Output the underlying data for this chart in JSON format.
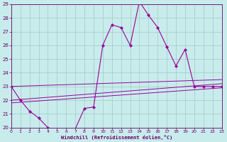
{
  "xlabel": "Windchill (Refroidissement éolien,°C)",
  "bg_color": "#c8ecec",
  "grid_color": "#a0c8c8",
  "line_color": "#990099",
  "xlim": [
    0,
    23
  ],
  "ylim": [
    20,
    29
  ],
  "yticks": [
    20,
    21,
    22,
    23,
    24,
    25,
    26,
    27,
    28,
    29
  ],
  "xticks": [
    0,
    1,
    2,
    3,
    4,
    5,
    6,
    7,
    8,
    9,
    10,
    11,
    12,
    13,
    14,
    15,
    16,
    17,
    18,
    19,
    20,
    21,
    22,
    23
  ],
  "series": [
    {
      "x": [
        0,
        1,
        2,
        3,
        4,
        5,
        6,
        7,
        8,
        9,
        10,
        11,
        12,
        13,
        14,
        15,
        16,
        17,
        18,
        19,
        20,
        21,
        22,
        23
      ],
      "y": [
        23.0,
        22.0,
        21.2,
        20.7,
        20.0,
        19.8,
        19.8,
        19.9,
        21.4,
        21.5,
        26.0,
        27.5,
        27.3,
        26.0,
        29.2,
        28.2,
        27.3,
        25.9,
        24.5,
        25.7,
        23.0,
        23.0,
        23.0,
        23.0
      ],
      "has_markers": true
    },
    {
      "x": [
        0,
        23
      ],
      "y": [
        23.0,
        23.5
      ],
      "has_markers": false
    },
    {
      "x": [
        0,
        23
      ],
      "y": [
        22.0,
        23.2
      ],
      "has_markers": false
    },
    {
      "x": [
        0,
        23
      ],
      "y": [
        21.8,
        22.9
      ],
      "has_markers": false
    }
  ]
}
